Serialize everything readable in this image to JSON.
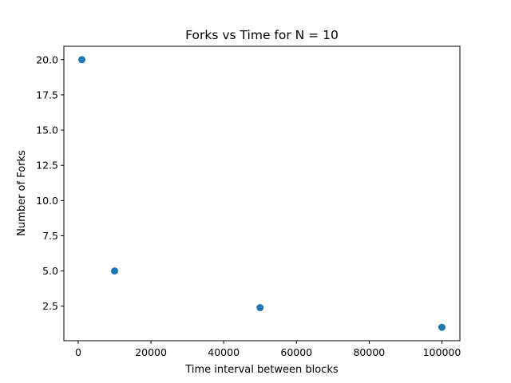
{
  "chart_data": {
    "type": "scatter",
    "title": "Forks vs Time for N = 10",
    "xlabel": "Time interval between blocks",
    "ylabel": "Number of Forks",
    "x": [
      1000,
      10000,
      50000,
      100000
    ],
    "y": [
      20.0,
      5.0,
      2.4,
      1.0
    ],
    "xlim": [
      -3950,
      104950
    ],
    "ylim": [
      0.05,
      20.95
    ],
    "xticks": [
      0,
      20000,
      40000,
      60000,
      80000,
      100000
    ],
    "xtick_labels": [
      "0",
      "20000",
      "40000",
      "60000",
      "80000",
      "100000"
    ],
    "yticks": [
      2.5,
      5.0,
      7.5,
      10.0,
      12.5,
      15.0,
      17.5,
      20.0
    ],
    "ytick_labels": [
      "2.5",
      "5.0",
      "7.5",
      "10.0",
      "12.5",
      "15.0",
      "17.5",
      "20.0"
    ],
    "grid": false,
    "marker_color": "#1f77b4"
  }
}
